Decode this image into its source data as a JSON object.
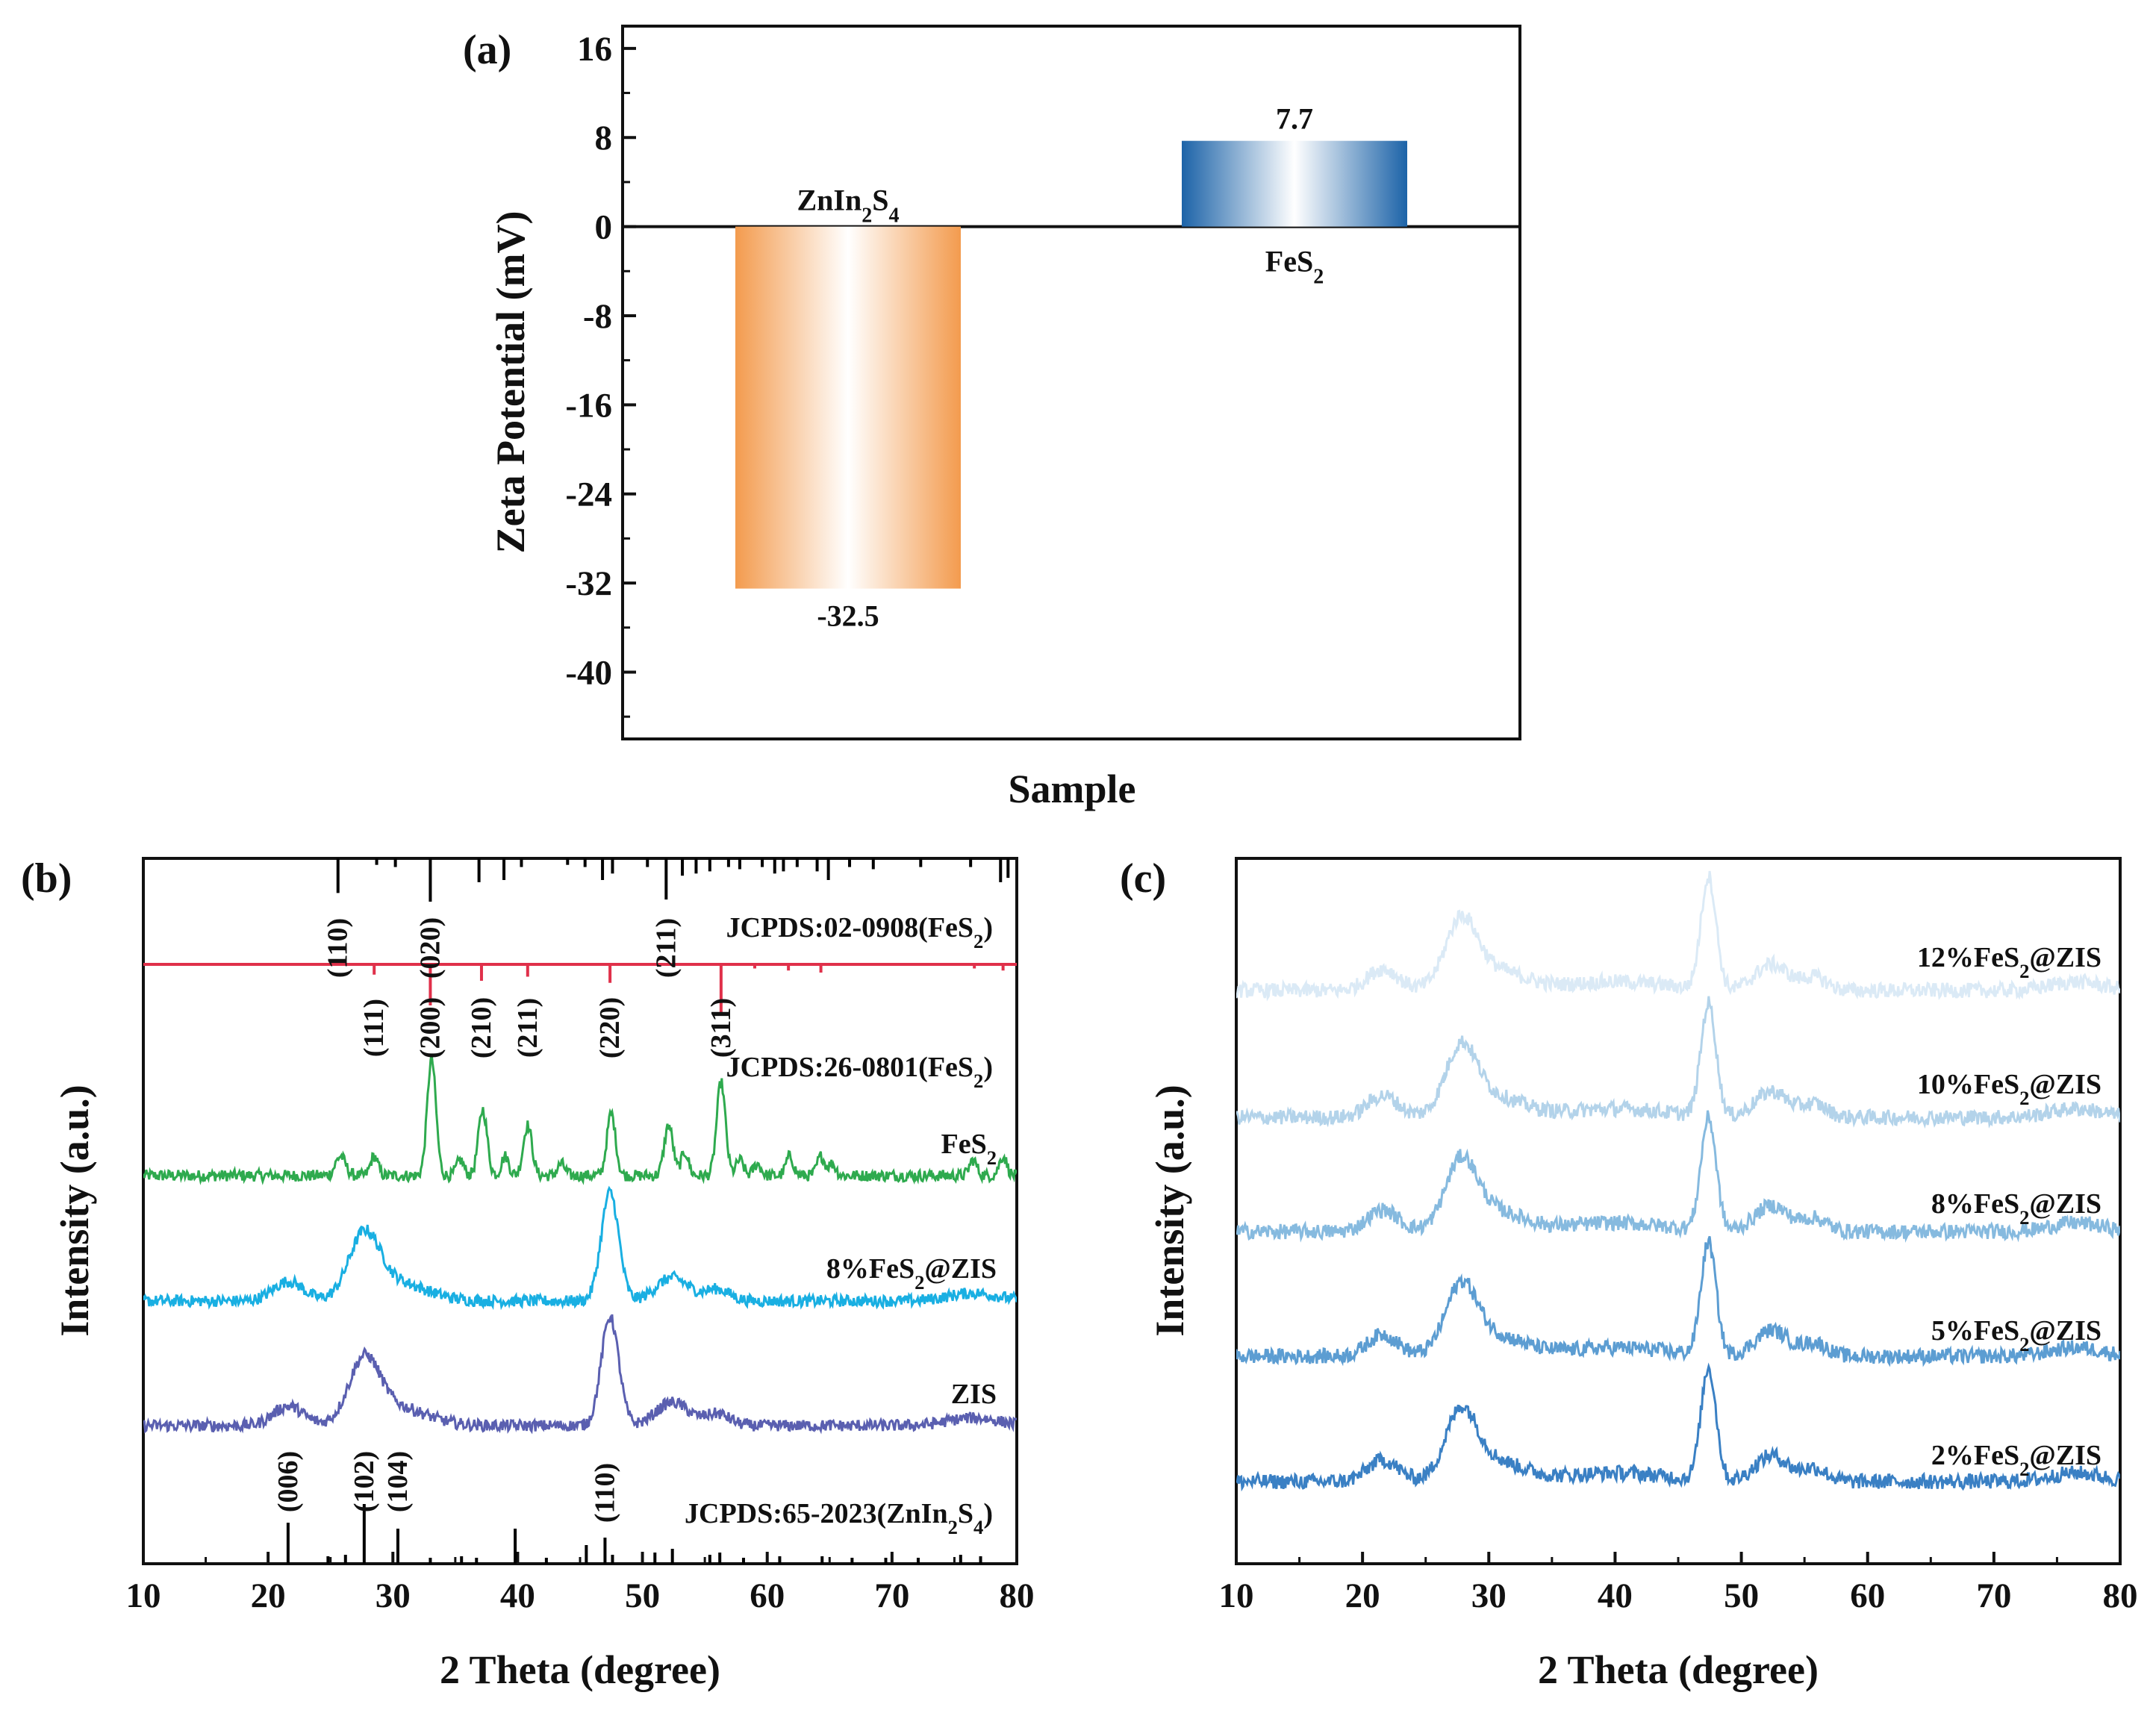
{
  "chart_data": [
    {
      "panel": "(a)",
      "type": "bar",
      "xlabel": "Sample",
      "ylabel": "Zeta Potential (mV)",
      "ylim": [
        -46,
        18
      ],
      "yticks": [
        "16",
        "8",
        "0",
        "-8",
        "-16",
        "-24",
        "-32",
        "-40"
      ],
      "bars": [
        {
          "name_base": "ZnIn",
          "name_sub1": "2",
          "name_mid": "S",
          "name_sub2": "4",
          "value": -32.5,
          "value_label": "-32.5",
          "color": "#f39b4e"
        },
        {
          "name_base": "FeS",
          "name_sub1": "2",
          "name_mid": "",
          "name_sub2": "",
          "value": 7.7,
          "value_label": "7.7",
          "color": "#1c63a8"
        }
      ]
    },
    {
      "panel": "(b)",
      "type": "line",
      "xlabel": "2 Theta (degree)",
      "ylabel": "Intensity (a.u.)",
      "xlim": [
        10,
        80
      ],
      "xticks": [
        "10",
        "20",
        "30",
        "40",
        "50",
        "60",
        "70",
        "80"
      ],
      "series": [
        {
          "name": "FeS2",
          "label_base": "FeS",
          "label_sub": "2",
          "label_tail": "",
          "color": "#2eaa4e",
          "baseline": 0.3,
          "peaks": [
            [
              25.8,
              0.05,
              0.4
            ],
            [
              28.5,
              0.05,
              0.3
            ],
            [
              33.1,
              0.3,
              0.35
            ],
            [
              35.4,
              0.04,
              0.3
            ],
            [
              37.2,
              0.17,
              0.35
            ],
            [
              39.0,
              0.05,
              0.3
            ],
            [
              40.8,
              0.13,
              0.35
            ],
            [
              43.5,
              0.03,
              0.3
            ],
            [
              47.5,
              0.16,
              0.35
            ],
            [
              52.1,
              0.13,
              0.35
            ],
            [
              53.4,
              0.06,
              0.3
            ],
            [
              56.3,
              0.24,
              0.35
            ],
            [
              57.8,
              0.04,
              0.3
            ],
            [
              59.2,
              0.03,
              0.3
            ],
            [
              61.8,
              0.05,
              0.3
            ],
            [
              64.3,
              0.05,
              0.3
            ],
            [
              65.2,
              0.03,
              0.3
            ],
            [
              76.5,
              0.04,
              0.3
            ],
            [
              78.9,
              0.05,
              0.3
            ]
          ]
        },
        {
          "name": "8%FeS2@ZIS",
          "label_base": "8%FeS",
          "label_sub": "2",
          "label_tail": "@ZIS",
          "color": "#19afe2",
          "baseline": 0.3,
          "peaks": [
            [
              21.6,
              0.05,
              1.2
            ],
            [
              27.7,
              0.15,
              1.2
            ],
            [
              30.0,
              0.05,
              2.5
            ],
            [
              47.4,
              0.28,
              0.7
            ],
            [
              52.4,
              0.06,
              1.3
            ],
            [
              56.0,
              0.03,
              1.0
            ],
            [
              76.5,
              0.02,
              2.0
            ]
          ]
        },
        {
          "name": "ZIS",
          "label_base": "ZIS",
          "label_sub": "",
          "label_tail": "",
          "color": "#5a5fb0",
          "baseline": 0.3,
          "peaks": [
            [
              21.6,
              0.05,
              1.2
            ],
            [
              27.7,
              0.15,
              1.2
            ],
            [
              30.0,
              0.05,
              2.5
            ],
            [
              47.4,
              0.28,
              0.7
            ],
            [
              52.4,
              0.06,
              1.3
            ],
            [
              56.0,
              0.03,
              1.0
            ],
            [
              76.5,
              0.02,
              2.0
            ]
          ]
        }
      ],
      "reference_fes2_020908": {
        "label_base": "JCPDS:02-0908(FeS",
        "label_sub": "2",
        "label_tail": ")",
        "color": "#000000",
        "lines": [
          [
            25.6,
            0.8
          ],
          [
            28.7,
            0.15
          ],
          [
            30.2,
            0.2
          ],
          [
            33.0,
            1.0
          ],
          [
            36.9,
            0.55
          ],
          [
            38.9,
            0.5
          ],
          [
            40.3,
            0.2
          ],
          [
            44.0,
            0.15
          ],
          [
            45.4,
            0.2
          ],
          [
            46.8,
            0.5
          ],
          [
            47.6,
            0.35
          ],
          [
            50.4,
            0.2
          ],
          [
            51.9,
            0.95
          ],
          [
            53.2,
            0.4
          ],
          [
            54.3,
            0.35
          ],
          [
            55.4,
            0.3
          ],
          [
            56.9,
            0.2
          ],
          [
            57.8,
            0.25
          ],
          [
            59.6,
            0.2
          ],
          [
            60.6,
            0.35
          ],
          [
            61.3,
            0.3
          ],
          [
            62.4,
            0.2
          ],
          [
            64.0,
            0.3
          ],
          [
            64.9,
            0.5
          ],
          [
            66.6,
            0.2
          ],
          [
            68.5,
            0.25
          ],
          [
            72.3,
            0.2
          ],
          [
            76.3,
            0.2
          ],
          [
            78.7,
            0.55
          ],
          [
            79.3,
            0.45
          ]
        ],
        "hkl": [
          {
            "pos": 25.6,
            "label": "(110)"
          },
          {
            "pos": 33.0,
            "label": "(020)"
          },
          {
            "pos": 51.9,
            "label": "(211)"
          }
        ]
      },
      "reference_fes2_260801": {
        "label_base": "JCPDS:26-0801(FeS",
        "label_sub": "2",
        "label_tail": ")",
        "color": "#e0304a",
        "lines": [
          [
            28.5,
            0.25
          ],
          [
            33.0,
            1.0
          ],
          [
            37.1,
            0.4
          ],
          [
            40.8,
            0.3
          ],
          [
            47.4,
            0.45
          ],
          [
            56.3,
            1.25
          ],
          [
            59.0,
            0.1
          ],
          [
            61.7,
            0.15
          ],
          [
            64.3,
            0.2
          ],
          [
            76.6,
            0.1
          ],
          [
            78.9,
            0.15
          ]
        ],
        "hkl": [
          {
            "pos": 28.5,
            "label": "(111)"
          },
          {
            "pos": 33.0,
            "label": "(200)"
          },
          {
            "pos": 37.1,
            "label": "(210)"
          },
          {
            "pos": 40.8,
            "label": "(211)"
          },
          {
            "pos": 47.4,
            "label": "(220)"
          },
          {
            "pos": 56.3,
            "label": "(311)"
          }
        ]
      },
      "reference_zis_652023": {
        "label_base": "JCPDS:65-2023(ZnIn",
        "label_sub": "2",
        "label_mid": "S",
        "label_sub2": "4",
        "label_tail": ")",
        "color": "#000000",
        "lines": [
          [
            21.6,
            0.55
          ],
          [
            24.8,
            0.1
          ],
          [
            26.2,
            0.12
          ],
          [
            27.7,
            0.8
          ],
          [
            30.4,
            0.47
          ],
          [
            33.0,
            0.08
          ],
          [
            35.5,
            0.1
          ],
          [
            36.7,
            0.08
          ],
          [
            39.8,
            0.47
          ],
          [
            42.3,
            0.08
          ],
          [
            45.5,
            0.25
          ],
          [
            47.0,
            0.35
          ],
          [
            47.6,
            0.12
          ],
          [
            51.0,
            0.15
          ],
          [
            52.4,
            0.2
          ],
          [
            55.4,
            0.12
          ],
          [
            56.2,
            0.15
          ],
          [
            58.1,
            0.08
          ],
          [
            61.0,
            0.1
          ],
          [
            64.4,
            0.1
          ],
          [
            66.8,
            0.08
          ],
          [
            69.5,
            0.08
          ],
          [
            72.1,
            0.08
          ],
          [
            75.5,
            0.12
          ],
          [
            77.1,
            0.1
          ]
        ],
        "hkl": [
          {
            "pos": 21.6,
            "label": "(006)"
          },
          {
            "pos": 27.7,
            "label": "(102)"
          },
          {
            "pos": 30.4,
            "label": "(104)"
          },
          {
            "pos": 47.0,
            "label": "(110)"
          }
        ]
      }
    },
    {
      "panel": "(c)",
      "type": "line",
      "xlabel": "2 Theta (degree)",
      "ylabel": "Intensity (a.u.)",
      "xlim": [
        10,
        80
      ],
      "xticks": [
        "10",
        "20",
        "30",
        "40",
        "50",
        "60",
        "70",
        "80"
      ],
      "series": [
        {
          "name": "12%FeS2@ZIS",
          "label_base": "12%FeS",
          "label_sub": "2",
          "label_tail": "@ZIS",
          "color": "#dbeaf6"
        },
        {
          "name": "10%FeS2@ZIS",
          "label_base": "10%FeS",
          "label_sub": "2",
          "label_tail": "@ZIS",
          "color": "#b3d3ea"
        },
        {
          "name": "8%FeS2@ZIS",
          "label_base": "8%FeS",
          "label_sub": "2",
          "label_tail": "@ZIS",
          "color": "#86badf"
        },
        {
          "name": "5%FeS2@ZIS",
          "label_base": "5%FeS",
          "label_sub": "2",
          "label_tail": "@ZIS",
          "color": "#5c9dd2"
        },
        {
          "name": "2%FeS2@ZIS",
          "label_base": "2%FeS",
          "label_sub": "2",
          "label_tail": "@ZIS",
          "color": "#3a80c4"
        }
      ],
      "zis_profile": [
        [
          21.6,
          0.05,
          1.2
        ],
        [
          27.8,
          0.14,
          1.2
        ],
        [
          30.0,
          0.05,
          2.5
        ],
        [
          40.0,
          0.02,
          4.0
        ],
        [
          47.4,
          0.26,
          0.6
        ],
        [
          52.4,
          0.06,
          1.3
        ],
        [
          55.8,
          0.03,
          1.0
        ],
        [
          76.5,
          0.02,
          2.0
        ]
      ]
    }
  ]
}
